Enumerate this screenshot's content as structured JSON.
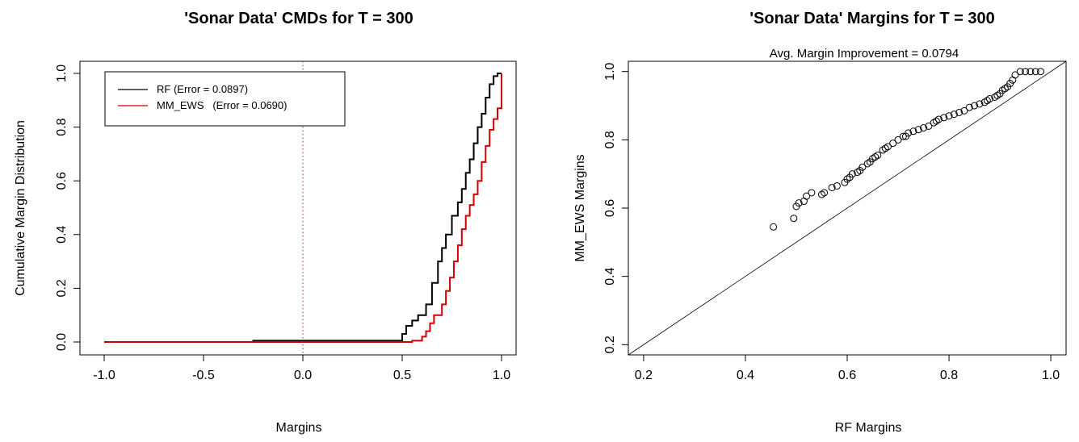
{
  "chart_data": [
    {
      "type": "line",
      "title": "'Sonar Data' CMDs for T = 300",
      "xlabel": "Margins",
      "ylabel": "Cumulative Margin Distribution",
      "xlim": [
        -1.0,
        1.0
      ],
      "ylim": [
        0.0,
        1.0
      ],
      "xticks": [
        "-1.0",
        "-0.5",
        "0.0",
        "0.5",
        "1.0"
      ],
      "yticks": [
        "0.0",
        "0.2",
        "0.4",
        "0.6",
        "0.8",
        "1.0"
      ],
      "vline": {
        "x": 0.0,
        "color": "#b22222",
        "style": "dotted"
      },
      "legend": {
        "position": "top-left"
      },
      "series": [
        {
          "name": "RF (Error = 0.0897)",
          "color": "#000000",
          "x": [
            -1.0,
            -0.25,
            -0.25,
            0.49,
            0.5,
            0.52,
            0.55,
            0.58,
            0.62,
            0.65,
            0.68,
            0.7,
            0.72,
            0.75,
            0.78,
            0.8,
            0.82,
            0.84,
            0.86,
            0.88,
            0.9,
            0.92,
            0.94,
            0.96,
            0.98,
            1.0
          ],
          "y": [
            0.0,
            0.0,
            0.005,
            0.005,
            0.03,
            0.06,
            0.08,
            0.1,
            0.14,
            0.22,
            0.3,
            0.35,
            0.4,
            0.47,
            0.52,
            0.57,
            0.63,
            0.68,
            0.74,
            0.8,
            0.85,
            0.91,
            0.96,
            0.99,
            1.0,
            1.0
          ]
        },
        {
          "name": "MM_EWS   (Error = 0.0690)",
          "color": "#d00000",
          "x": [
            -1.0,
            0.5,
            0.55,
            0.6,
            0.62,
            0.64,
            0.66,
            0.7,
            0.72,
            0.74,
            0.76,
            0.78,
            0.8,
            0.82,
            0.84,
            0.86,
            0.88,
            0.9,
            0.92,
            0.94,
            0.96,
            0.98,
            1.0,
            1.0
          ],
          "y": [
            0.0,
            0.0,
            0.005,
            0.02,
            0.04,
            0.07,
            0.1,
            0.14,
            0.19,
            0.24,
            0.3,
            0.36,
            0.42,
            0.47,
            0.51,
            0.55,
            0.6,
            0.67,
            0.73,
            0.79,
            0.83,
            0.87,
            0.9,
            1.0
          ]
        }
      ]
    },
    {
      "type": "scatter",
      "title": "'Sonar Data' Margins for T = 300",
      "subtitle": "Avg. Margin Improvement = 0.0794",
      "xlabel": "RF Margins",
      "ylabel": "MM_EWS Margins",
      "xlim": [
        0.17,
        1.03
      ],
      "ylim": [
        0.17,
        1.03
      ],
      "xticks": [
        "0.2",
        "0.4",
        "0.6",
        "0.8",
        "1.0"
      ],
      "yticks": [
        "0.2",
        "0.4",
        "0.6",
        "0.8",
        "1.0"
      ],
      "reference_line": "y = x",
      "points": {
        "x": [
          0.455,
          0.495,
          0.5,
          0.505,
          0.515,
          0.52,
          0.53,
          0.55,
          0.555,
          0.57,
          0.58,
          0.595,
          0.6,
          0.605,
          0.61,
          0.62,
          0.625,
          0.63,
          0.64,
          0.645,
          0.65,
          0.655,
          0.66,
          0.67,
          0.675,
          0.68,
          0.69,
          0.7,
          0.71,
          0.715,
          0.72,
          0.73,
          0.74,
          0.75,
          0.76,
          0.77,
          0.775,
          0.78,
          0.79,
          0.8,
          0.81,
          0.82,
          0.83,
          0.84,
          0.85,
          0.86,
          0.87,
          0.875,
          0.88,
          0.89,
          0.895,
          0.9,
          0.905,
          0.91,
          0.915,
          0.92,
          0.925,
          0.93,
          0.94,
          0.95,
          0.96,
          0.97,
          0.98
        ],
        "y": [
          0.545,
          0.57,
          0.605,
          0.615,
          0.62,
          0.635,
          0.645,
          0.64,
          0.645,
          0.66,
          0.665,
          0.675,
          0.685,
          0.69,
          0.7,
          0.705,
          0.71,
          0.72,
          0.73,
          0.735,
          0.745,
          0.75,
          0.755,
          0.77,
          0.775,
          0.78,
          0.79,
          0.8,
          0.81,
          0.81,
          0.82,
          0.825,
          0.83,
          0.835,
          0.84,
          0.85,
          0.855,
          0.86,
          0.865,
          0.87,
          0.875,
          0.88,
          0.885,
          0.895,
          0.9,
          0.905,
          0.91,
          0.915,
          0.92,
          0.925,
          0.93,
          0.935,
          0.945,
          0.95,
          0.955,
          0.965,
          0.975,
          0.99,
          1.0,
          1.0,
          1.0,
          1.0,
          1.0
        ]
      }
    }
  ]
}
